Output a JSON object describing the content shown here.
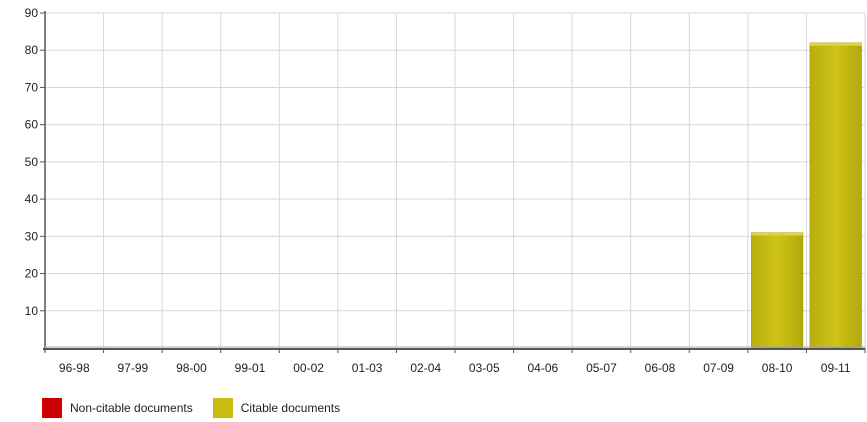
{
  "chart_data": {
    "type": "bar",
    "categories": [
      "96-98",
      "97-99",
      "98-00",
      "99-01",
      "00-02",
      "01-03",
      "02-04",
      "03-05",
      "04-06",
      "05-07",
      "06-08",
      "07-09",
      "08-10",
      "09-11"
    ],
    "series": [
      {
        "name": "Non-citable documents",
        "color": "#cc0000",
        "values": [
          0,
          0,
          0,
          0,
          0,
          0,
          0,
          0,
          0,
          0,
          0,
          0,
          0,
          0
        ]
      },
      {
        "name": "Citable documents",
        "color": "#c8bc13",
        "values": [
          0,
          0,
          0,
          0,
          0,
          0,
          0,
          0,
          0,
          0,
          0,
          0,
          31,
          82
        ]
      }
    ],
    "yticks": [
      10,
      20,
      30,
      40,
      50,
      60,
      70,
      80,
      90
    ],
    "ylim": [
      0,
      90
    ],
    "stacked": true,
    "grid": true,
    "legend_position": "bottom-left",
    "title": "",
    "xlabel": "",
    "ylabel": ""
  },
  "legend": {
    "items": [
      {
        "label": "Non-citable documents",
        "color": "#cc0000"
      },
      {
        "label": "Citable documents",
        "color": "#c8bc13"
      }
    ]
  }
}
